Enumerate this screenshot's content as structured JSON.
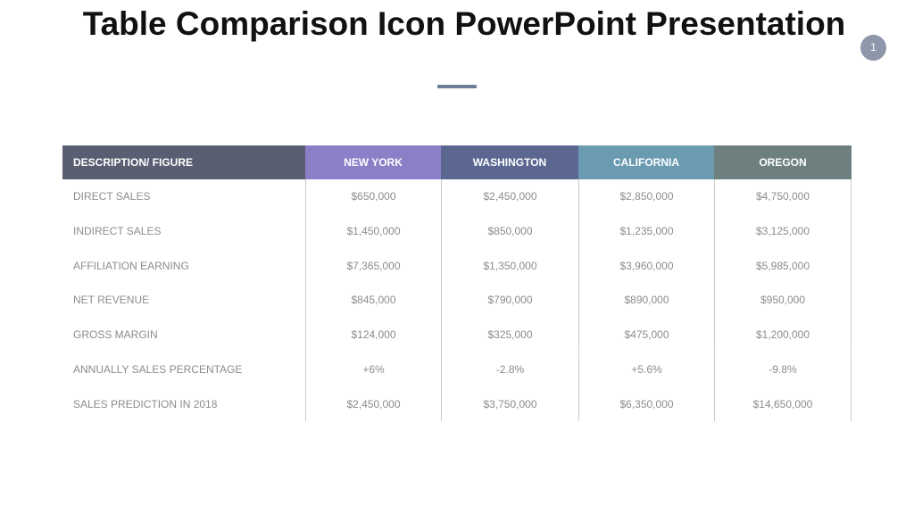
{
  "header": {
    "title": "Table Comparison Icon PowerPoint Presentation",
    "page_number": "1"
  },
  "table": {
    "columns": [
      "DESCRIPTION/ FIGURE",
      "NEW YORK",
      "WASHINGTON",
      "CALIFORNIA",
      "OREGON"
    ],
    "column_colors": [
      "#5a5e72",
      "#8b80c7",
      "#5b6791",
      "#6a9bb1",
      "#6e7f80"
    ],
    "rows": [
      [
        "DIRECT SALES",
        "$650,000",
        "$2,450,000",
        "$2,850,000",
        "$4,750,000"
      ],
      [
        "INDIRECT SALES",
        "$1,450,000",
        "$850,000",
        "$1,235,000",
        "$3,125,000"
      ],
      [
        "AFFILIATION EARNING",
        "$7,365,000",
        "$1,350,000",
        "$3,960,000",
        "$5,985,000"
      ],
      [
        "NET REVENUE",
        "$845,000",
        "$790,000",
        "$890,000",
        "$950,000"
      ],
      [
        "GROSS MARGIN",
        "$124,000",
        "$325,000",
        "$475,000",
        "$1,200,000"
      ],
      [
        "ANNUALLY SALES PERCENTAGE",
        "+6%",
        "-2.8%",
        "+5.6%",
        "-9.8%"
      ],
      [
        "SALES PREDICTION IN 2018",
        "$2,450,000",
        "$3,750,000",
        "$6,350,000",
        "$14,650,000"
      ]
    ]
  }
}
